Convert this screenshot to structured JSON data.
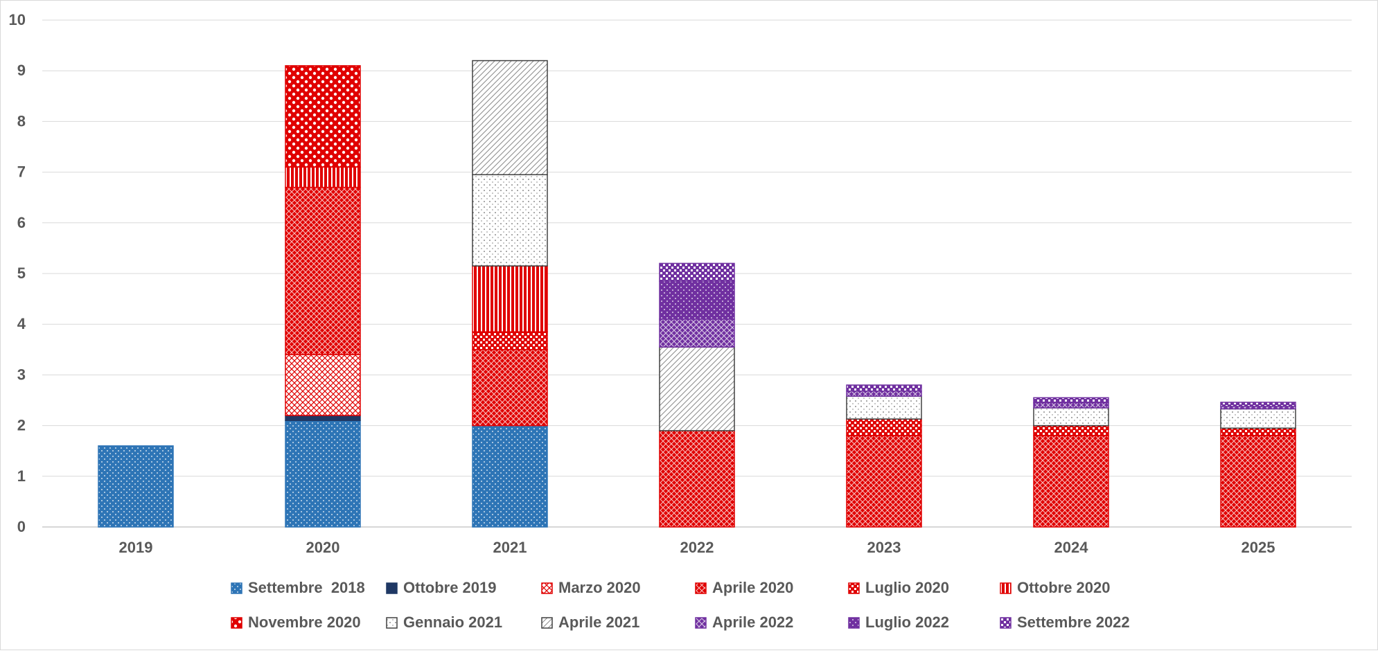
{
  "chart_data": {
    "type": "bar",
    "stacked": true,
    "title": "",
    "xlabel": "",
    "ylabel": "",
    "ylim": [
      0,
      10
    ],
    "yticks": [
      "0",
      "1",
      "2",
      "3",
      "4",
      "5",
      "6",
      "7",
      "8",
      "9",
      "10"
    ],
    "grid": true,
    "legend_position": "bottom",
    "categories": [
      "2019",
      "2020",
      "2021",
      "2022",
      "2023",
      "2024",
      "2025"
    ],
    "series": [
      {
        "name": "Settembre  2018",
        "color": "#2e75b6",
        "pattern": "dots",
        "values": [
          1.6,
          2.1,
          2.0,
          null,
          null,
          null,
          null
        ]
      },
      {
        "name": "Ottobre 2019",
        "color": "#1f3864",
        "pattern": "solid",
        "values": [
          null,
          0.1,
          null,
          null,
          null,
          null,
          null
        ]
      },
      {
        "name": "Marzo 2020",
        "color": "#e00000",
        "pattern": "crosshatch-light",
        "values": [
          null,
          1.2,
          null,
          null,
          null,
          null,
          null
        ]
      },
      {
        "name": "Aprile 2020",
        "color": "#e00000",
        "pattern": "crosshatch",
        "values": [
          null,
          3.3,
          1.5,
          1.9,
          1.8,
          1.8,
          1.8
        ]
      },
      {
        "name": "Luglio 2020",
        "color": "#e00000",
        "pattern": "checker",
        "values": [
          null,
          null,
          0.35,
          null,
          0.33,
          0.2,
          0.15
        ]
      },
      {
        "name": "Ottobre 2020",
        "color": "#e00000",
        "pattern": "vertical-lines",
        "values": [
          null,
          0.4,
          1.3,
          null,
          null,
          null,
          null
        ]
      },
      {
        "name": "Novembre 2020",
        "color": "#e00000",
        "pattern": "large-checker",
        "values": [
          null,
          2.0,
          null,
          null,
          null,
          null,
          null
        ]
      },
      {
        "name": "Gennaio 2021",
        "color": "#404040",
        "pattern": "sparse-dots",
        "values": [
          null,
          null,
          1.8,
          null,
          0.45,
          0.35,
          0.38
        ]
      },
      {
        "name": "Aprile 2021",
        "color": "#404040",
        "pattern": "diagonal",
        "values": [
          null,
          null,
          2.25,
          1.65,
          null,
          null,
          null
        ]
      },
      {
        "name": "Aprile 2022",
        "color": "#7030a0",
        "pattern": "crosshatch",
        "values": [
          null,
          null,
          null,
          0.55,
          0.1,
          0.1,
          0.05
        ]
      },
      {
        "name": "Luglio 2022",
        "color": "#7030a0",
        "pattern": "dots",
        "values": [
          null,
          null,
          null,
          0.75,
          null,
          null,
          null
        ]
      },
      {
        "name": "Settembre 2022",
        "color": "#7030a0",
        "pattern": "checker",
        "values": [
          null,
          null,
          null,
          0.35,
          0.12,
          0.1,
          0.08
        ]
      }
    ]
  }
}
